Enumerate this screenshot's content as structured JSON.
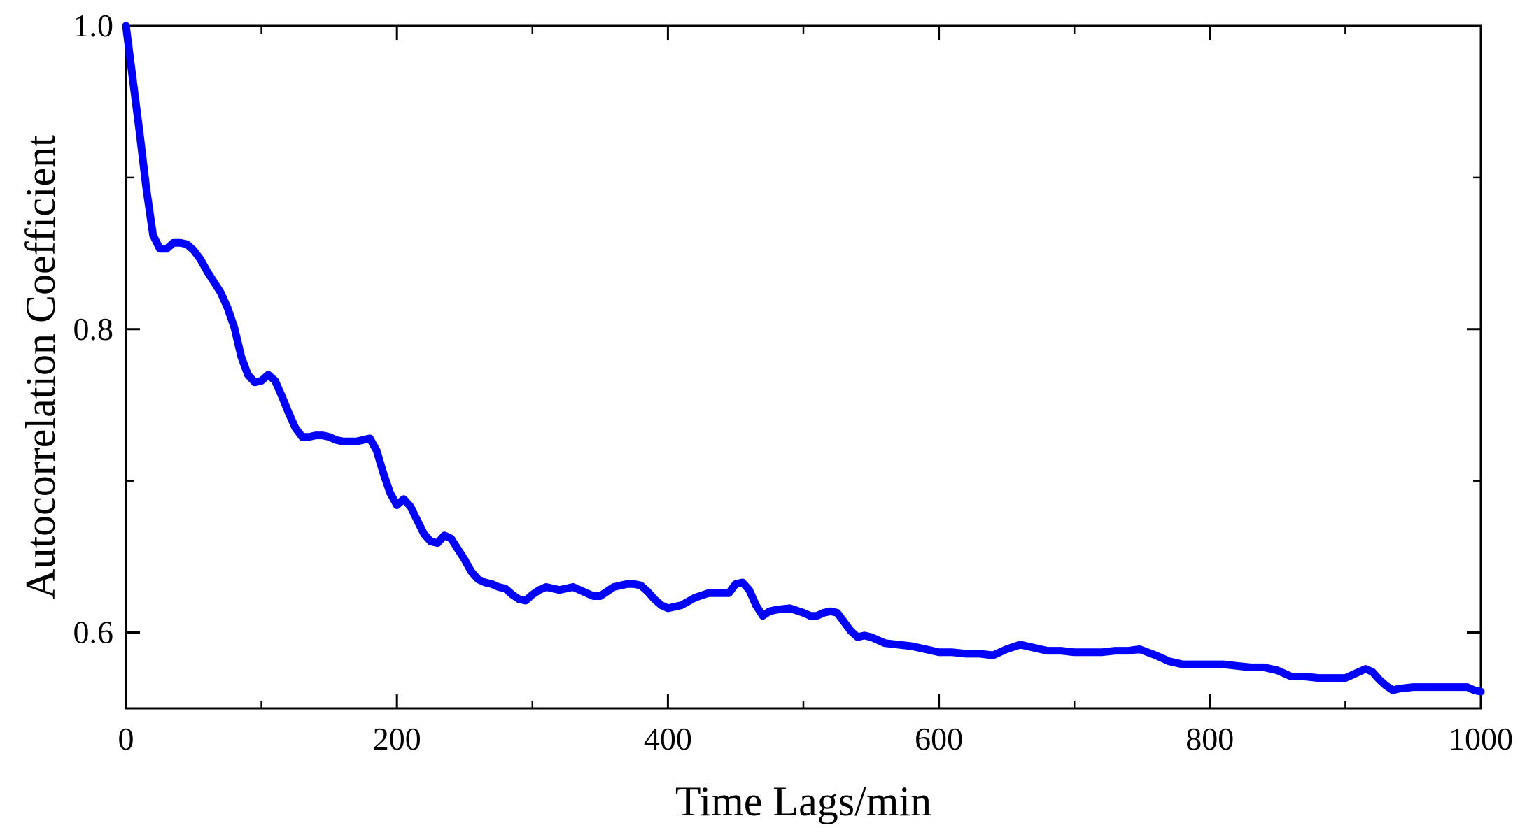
{
  "chart_data": {
    "type": "line",
    "title": "",
    "xlabel": "Time Lags/min",
    "ylabel": "Autocorrelation Coefficient",
    "xlim": [
      0,
      1000
    ],
    "ylim": [
      0.55,
      1.0
    ],
    "x_ticks": [
      0,
      200,
      400,
      600,
      800,
      1000
    ],
    "x_tick_labels": [
      "0",
      "200",
      "400",
      "600",
      "800",
      "1000"
    ],
    "x_minor_ticks": [
      100,
      300,
      500,
      700,
      900
    ],
    "y_ticks": [
      0.6,
      0.8,
      1.0
    ],
    "y_tick_labels": [
      "0.6",
      "0.8",
      "1.0"
    ],
    "y_minor_ticks": [
      0.7,
      0.9
    ],
    "grid": false,
    "legend": "none",
    "series_color": "#0000ff",
    "series": [
      {
        "x": [
          0,
          5,
          10,
          15,
          20,
          25,
          30,
          35,
          40,
          45,
          50,
          55,
          60,
          70,
          75,
          80,
          85,
          90,
          95,
          100,
          105,
          110,
          115,
          120,
          125,
          130,
          135,
          140,
          145,
          150,
          155,
          160,
          165,
          170,
          175,
          180,
          185,
          190,
          195,
          200,
          205,
          210,
          215,
          220,
          225,
          230,
          235,
          240,
          245,
          250,
          255,
          260,
          265,
          270,
          275,
          280,
          285,
          290,
          295,
          300,
          305,
          310,
          320,
          330,
          340,
          345,
          350,
          355,
          360,
          365,
          370,
          375,
          380,
          385,
          390,
          395,
          400,
          405,
          410,
          420,
          430,
          440,
          445,
          450,
          455,
          460,
          465,
          470,
          475,
          480,
          490,
          500,
          505,
          510,
          515,
          520,
          525,
          530,
          535,
          540,
          545,
          550,
          560,
          570,
          580,
          590,
          600,
          610,
          620,
          630,
          640,
          650,
          660,
          670,
          680,
          690,
          700,
          710,
          720,
          730,
          740,
          748,
          760,
          770,
          780,
          790,
          800,
          810,
          820,
          830,
          840,
          850,
          860,
          870,
          880,
          890,
          900,
          905,
          910,
          915,
          920,
          925,
          930,
          935,
          940,
          950,
          960,
          970,
          980,
          990,
          995,
          1000
        ],
        "values": [
          1.0,
          0.965,
          0.93,
          0.893,
          0.862,
          0.853,
          0.853,
          0.857,
          0.857,
          0.856,
          0.852,
          0.846,
          0.838,
          0.824,
          0.814,
          0.801,
          0.782,
          0.77,
          0.765,
          0.766,
          0.77,
          0.766,
          0.756,
          0.745,
          0.735,
          0.729,
          0.729,
          0.73,
          0.73,
          0.729,
          0.727,
          0.726,
          0.726,
          0.726,
          0.727,
          0.728,
          0.72,
          0.705,
          0.692,
          0.684,
          0.688,
          0.683,
          0.674,
          0.665,
          0.66,
          0.659,
          0.664,
          0.662,
          0.655,
          0.648,
          0.64,
          0.635,
          0.633,
          0.632,
          0.63,
          0.629,
          0.625,
          0.622,
          0.621,
          0.625,
          0.628,
          0.63,
          0.628,
          0.63,
          0.626,
          0.624,
          0.624,
          0.627,
          0.63,
          0.631,
          0.632,
          0.632,
          0.631,
          0.627,
          0.622,
          0.618,
          0.616,
          0.617,
          0.618,
          0.623,
          0.626,
          0.626,
          0.626,
          0.632,
          0.633,
          0.628,
          0.618,
          0.611,
          0.614,
          0.615,
          0.616,
          0.613,
          0.611,
          0.611,
          0.613,
          0.614,
          0.613,
          0.607,
          0.601,
          0.597,
          0.598,
          0.597,
          0.593,
          0.592,
          0.591,
          0.589,
          0.587,
          0.587,
          0.586,
          0.586,
          0.585,
          0.589,
          0.592,
          0.59,
          0.588,
          0.588,
          0.587,
          0.587,
          0.587,
          0.588,
          0.588,
          0.589,
          0.585,
          0.581,
          0.579,
          0.579,
          0.579,
          0.579,
          0.578,
          0.577,
          0.577,
          0.575,
          0.571,
          0.571,
          0.57,
          0.57,
          0.57,
          0.572,
          0.574,
          0.576,
          0.574,
          0.569,
          0.565,
          0.562,
          0.563,
          0.564,
          0.564,
          0.564,
          0.564,
          0.564,
          0.562,
          0.561
        ]
      }
    ]
  }
}
